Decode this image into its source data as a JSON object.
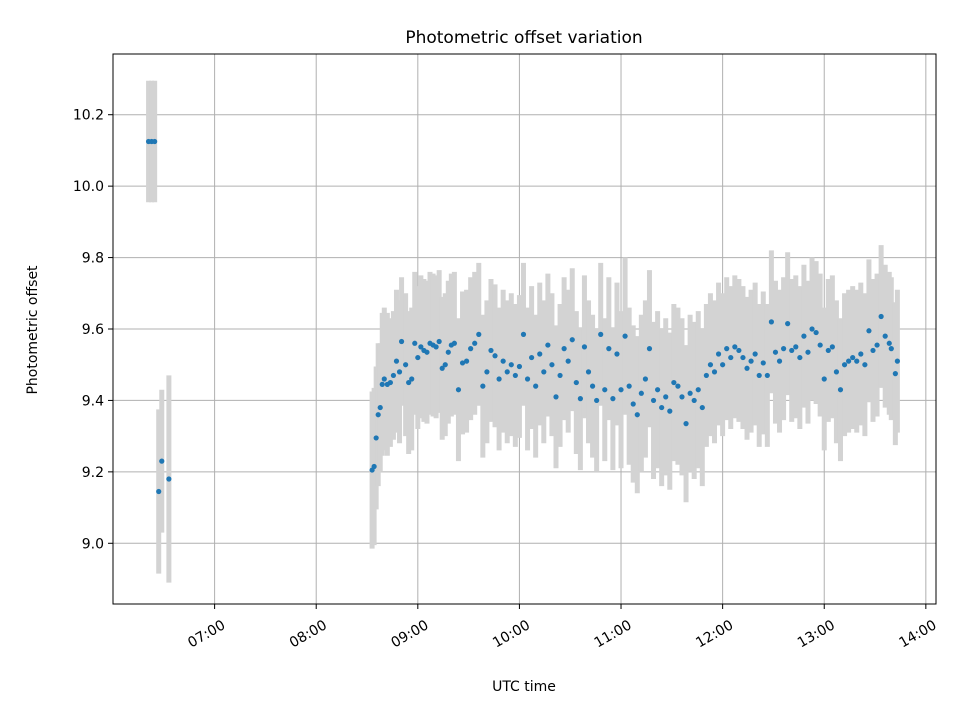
{
  "chart_data": {
    "type": "scatter",
    "title": "Photometric offset variation",
    "xlabel": "UTC time",
    "ylabel": "Photometric offset",
    "x_units": "hours UTC",
    "xlim": [
      6.0,
      14.1
    ],
    "ylim": [
      8.83,
      10.37
    ],
    "x_ticks": [
      7,
      8,
      9,
      10,
      11,
      12,
      13,
      14
    ],
    "x_tick_labels": [
      "07:00",
      "08:00",
      "09:00",
      "10:00",
      "11:00",
      "12:00",
      "13:00",
      "14:00"
    ],
    "y_ticks": [
      9.0,
      9.2,
      9.4,
      9.6,
      9.8,
      10.0,
      10.2
    ],
    "y_tick_labels": [
      "9.0",
      "9.2",
      "9.4",
      "9.6",
      "9.8",
      "10.0",
      "10.2"
    ],
    "grid": true,
    "colors": {
      "points": "#1f77b4",
      "errorbars": "#d3d3d3",
      "grid": "#b0b0b0"
    },
    "series": [
      {
        "name": "",
        "points": [
          [
            6.35,
            10.125,
            0.17
          ],
          [
            6.38,
            10.125,
            0.17
          ],
          [
            6.41,
            10.125,
            0.17
          ],
          [
            6.45,
            9.145,
            0.23
          ],
          [
            6.48,
            9.23,
            0.2
          ],
          [
            6.55,
            9.18,
            0.29
          ],
          [
            8.55,
            9.205,
            0.22
          ],
          [
            8.57,
            9.215,
            0.22
          ],
          [
            8.59,
            9.295,
            0.2
          ],
          [
            8.61,
            9.36,
            0.2
          ],
          [
            8.63,
            9.38,
            0.18
          ],
          [
            8.65,
            9.445,
            0.2
          ],
          [
            8.67,
            9.46,
            0.2
          ],
          [
            8.7,
            9.445,
            0.2
          ],
          [
            8.73,
            9.45,
            0.18
          ],
          [
            8.76,
            9.47,
            0.18
          ],
          [
            8.79,
            9.51,
            0.2
          ],
          [
            8.82,
            9.48,
            0.2
          ],
          [
            8.84,
            9.565,
            0.18
          ],
          [
            8.88,
            9.5,
            0.2
          ],
          [
            8.91,
            9.45,
            0.2
          ],
          [
            8.94,
            9.46,
            0.2
          ],
          [
            8.97,
            9.56,
            0.2
          ],
          [
            9.0,
            9.52,
            0.2
          ],
          [
            9.03,
            9.55,
            0.2
          ],
          [
            9.06,
            9.54,
            0.2
          ],
          [
            9.09,
            9.535,
            0.2
          ],
          [
            9.12,
            9.56,
            0.2
          ],
          [
            9.15,
            9.555,
            0.2
          ],
          [
            9.18,
            9.55,
            0.2
          ],
          [
            9.21,
            9.565,
            0.2
          ],
          [
            9.24,
            9.49,
            0.2
          ],
          [
            9.27,
            9.5,
            0.2
          ],
          [
            9.3,
            9.535,
            0.2
          ],
          [
            9.33,
            9.555,
            0.2
          ],
          [
            9.36,
            9.56,
            0.2
          ],
          [
            9.4,
            9.43,
            0.2
          ],
          [
            9.44,
            9.505,
            0.2
          ],
          [
            9.48,
            9.51,
            0.2
          ],
          [
            9.52,
            9.545,
            0.2
          ],
          [
            9.56,
            9.56,
            0.2
          ],
          [
            9.6,
            9.585,
            0.2
          ],
          [
            9.64,
            9.44,
            0.2
          ],
          [
            9.68,
            9.48,
            0.2
          ],
          [
            9.72,
            9.54,
            0.2
          ],
          [
            9.76,
            9.525,
            0.2
          ],
          [
            9.8,
            9.46,
            0.2
          ],
          [
            9.84,
            9.51,
            0.2
          ],
          [
            9.88,
            9.48,
            0.2
          ],
          [
            9.92,
            9.5,
            0.2
          ],
          [
            9.96,
            9.47,
            0.2
          ],
          [
            10.0,
            9.495,
            0.2
          ],
          [
            10.04,
            9.585,
            0.2
          ],
          [
            10.08,
            9.46,
            0.2
          ],
          [
            10.12,
            9.52,
            0.2
          ],
          [
            10.16,
            9.44,
            0.2
          ],
          [
            10.2,
            9.53,
            0.2
          ],
          [
            10.24,
            9.48,
            0.2
          ],
          [
            10.28,
            9.555,
            0.2
          ],
          [
            10.32,
            9.5,
            0.2
          ],
          [
            10.36,
            9.41,
            0.2
          ],
          [
            10.4,
            9.47,
            0.2
          ],
          [
            10.44,
            9.545,
            0.2
          ],
          [
            10.48,
            9.51,
            0.2
          ],
          [
            10.52,
            9.57,
            0.2
          ],
          [
            10.56,
            9.45,
            0.2
          ],
          [
            10.6,
            9.405,
            0.2
          ],
          [
            10.64,
            9.55,
            0.2
          ],
          [
            10.68,
            9.48,
            0.2
          ],
          [
            10.72,
            9.44,
            0.2
          ],
          [
            10.76,
            9.4,
            0.2
          ],
          [
            10.8,
            9.585,
            0.2
          ],
          [
            10.84,
            9.43,
            0.2
          ],
          [
            10.88,
            9.545,
            0.2
          ],
          [
            10.92,
            9.405,
            0.2
          ],
          [
            10.96,
            9.53,
            0.2
          ],
          [
            11.0,
            9.43,
            0.22
          ],
          [
            11.04,
            9.58,
            0.22
          ],
          [
            11.08,
            9.44,
            0.22
          ],
          [
            11.12,
            9.39,
            0.22
          ],
          [
            11.16,
            9.36,
            0.22
          ],
          [
            11.2,
            9.42,
            0.22
          ],
          [
            11.24,
            9.46,
            0.22
          ],
          [
            11.28,
            9.545,
            0.22
          ],
          [
            11.32,
            9.4,
            0.22
          ],
          [
            11.36,
            9.43,
            0.22
          ],
          [
            11.4,
            9.38,
            0.22
          ],
          [
            11.44,
            9.41,
            0.22
          ],
          [
            11.48,
            9.37,
            0.22
          ],
          [
            11.52,
            9.45,
            0.22
          ],
          [
            11.56,
            9.44,
            0.22
          ],
          [
            11.6,
            9.41,
            0.22
          ],
          [
            11.64,
            9.335,
            0.22
          ],
          [
            11.68,
            9.42,
            0.22
          ],
          [
            11.72,
            9.4,
            0.22
          ],
          [
            11.76,
            9.43,
            0.22
          ],
          [
            11.8,
            9.38,
            0.22
          ],
          [
            11.84,
            9.47,
            0.2
          ],
          [
            11.88,
            9.5,
            0.2
          ],
          [
            11.92,
            9.48,
            0.2
          ],
          [
            11.96,
            9.53,
            0.2
          ],
          [
            12.0,
            9.5,
            0.2
          ],
          [
            12.04,
            9.545,
            0.2
          ],
          [
            12.08,
            9.52,
            0.2
          ],
          [
            12.12,
            9.55,
            0.2
          ],
          [
            12.16,
            9.54,
            0.2
          ],
          [
            12.2,
            9.52,
            0.2
          ],
          [
            12.24,
            9.49,
            0.2
          ],
          [
            12.28,
            9.51,
            0.2
          ],
          [
            12.32,
            9.53,
            0.2
          ],
          [
            12.36,
            9.47,
            0.2
          ],
          [
            12.4,
            9.505,
            0.2
          ],
          [
            12.44,
            9.47,
            0.2
          ],
          [
            12.48,
            9.62,
            0.2
          ],
          [
            12.52,
            9.535,
            0.2
          ],
          [
            12.56,
            9.51,
            0.2
          ],
          [
            12.6,
            9.545,
            0.2
          ],
          [
            12.64,
            9.615,
            0.2
          ],
          [
            12.68,
            9.54,
            0.2
          ],
          [
            12.72,
            9.55,
            0.2
          ],
          [
            12.76,
            9.52,
            0.2
          ],
          [
            12.8,
            9.58,
            0.2
          ],
          [
            12.84,
            9.535,
            0.2
          ],
          [
            12.88,
            9.6,
            0.2
          ],
          [
            12.92,
            9.59,
            0.2
          ],
          [
            12.96,
            9.555,
            0.2
          ],
          [
            13.0,
            9.46,
            0.2
          ],
          [
            13.04,
            9.54,
            0.2
          ],
          [
            13.08,
            9.55,
            0.2
          ],
          [
            13.12,
            9.48,
            0.2
          ],
          [
            13.16,
            9.43,
            0.2
          ],
          [
            13.2,
            9.5,
            0.2
          ],
          [
            13.24,
            9.51,
            0.2
          ],
          [
            13.28,
            9.52,
            0.2
          ],
          [
            13.32,
            9.51,
            0.2
          ],
          [
            13.36,
            9.53,
            0.2
          ],
          [
            13.4,
            9.5,
            0.2
          ],
          [
            13.44,
            9.595,
            0.2
          ],
          [
            13.48,
            9.54,
            0.2
          ],
          [
            13.52,
            9.555,
            0.2
          ],
          [
            13.56,
            9.635,
            0.2
          ],
          [
            13.6,
            9.58,
            0.2
          ],
          [
            13.64,
            9.56,
            0.2
          ],
          [
            13.66,
            9.545,
            0.2
          ],
          [
            13.7,
            9.475,
            0.2
          ],
          [
            13.72,
            9.51,
            0.2
          ]
        ]
      }
    ]
  }
}
